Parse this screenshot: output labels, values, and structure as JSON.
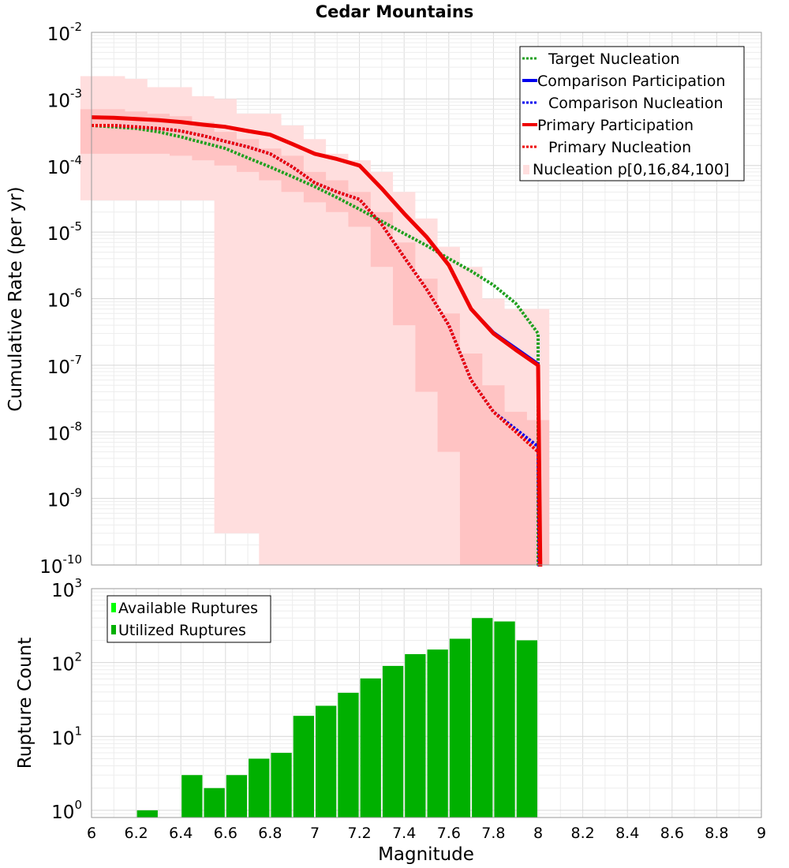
{
  "chart_data": [
    {
      "type": "line",
      "title": "Cedar Mountains",
      "xlabel": "",
      "ylabel": "Cumulative Rate (per yr)",
      "xlim": [
        6,
        9
      ],
      "ylim": [
        1e-10,
        0.01
      ],
      "yscale": "log",
      "y_tick_bases": [
        "10",
        "10",
        "10",
        "10",
        "10",
        "10",
        "10",
        "10",
        "10"
      ],
      "y_tick_exponents": [
        "-10",
        "-9",
        "-8",
        "-7",
        "-6",
        "-5",
        "-4",
        "-3",
        "-2"
      ],
      "grid": true,
      "legend_position": "top-right",
      "legend": [
        "Target Nucleation",
        "Comparison Participation",
        "Comparison Nucleation",
        "Primary Participation",
        "Primary Nucleation",
        "Nucleation p[0,16,84,100]"
      ],
      "colors": {
        "target": "#1fa01f",
        "comparison": "#0000ee",
        "primary": "#ee0000",
        "band_outer": "#ffdede",
        "band_inner": "#ffc3c3"
      },
      "x": [
        6.0,
        6.1,
        6.2,
        6.3,
        6.4,
        6.5,
        6.6,
        6.7,
        6.8,
        6.9,
        7.0,
        7.1,
        7.2,
        7.3,
        7.4,
        7.5,
        7.6,
        7.7,
        7.8,
        7.9,
        8.0
      ],
      "series": [
        {
          "name": "Target Nucleation",
          "style": "dotted",
          "values": [
            0.0004,
            0.00038,
            0.00036,
            0.00032,
            0.00027,
            0.00022,
            0.00018,
            0.00013,
            9.5e-05,
            6.8e-05,
            4.8e-05,
            3.3e-05,
            2.2e-05,
            1.45e-05,
            9.5e-06,
            6.3e-06,
            4e-06,
            2.6e-06,
            1.6e-06,
            8.5e-07,
            3e-07
          ]
        },
        {
          "name": "Comparison Participation",
          "style": "solid",
          "values": [
            0.00053,
            0.00052,
            0.0005,
            0.00048,
            0.00045,
            0.00041,
            0.00038,
            0.00033,
            0.00029,
            0.00021,
            0.00015,
            0.000125,
            0.0001,
            4.5e-05,
            1.9e-05,
            8.5e-06,
            3.2e-06,
            7e-07,
            3.1e-07,
            1.8e-07,
            1.05e-07
          ]
        },
        {
          "name": "Comparison Nucleation",
          "style": "dotted",
          "values": [
            0.0004,
            0.0004,
            0.00038,
            0.00036,
            0.00033,
            0.00028,
            0.00023,
            0.00019,
            0.00015,
            9.5e-05,
            5.5e-05,
            4e-05,
            3.1e-05,
            1.3e-05,
            4.2e-06,
            1.4e-06,
            4e-07,
            6e-08,
            2e-08,
            1.1e-08,
            6e-09
          ]
        },
        {
          "name": "Primary Participation",
          "style": "solid",
          "values": [
            0.00053,
            0.00052,
            0.0005,
            0.00048,
            0.00045,
            0.00041,
            0.00038,
            0.00033,
            0.00029,
            0.00021,
            0.00015,
            0.000125,
            0.0001,
            4.5e-05,
            1.9e-05,
            8.5e-06,
            3.2e-06,
            7e-07,
            3e-07,
            1.7e-07,
            1e-07
          ]
        },
        {
          "name": "Primary Nucleation",
          "style": "dotted",
          "values": [
            0.0004,
            0.0004,
            0.00038,
            0.00036,
            0.00033,
            0.00028,
            0.00023,
            0.00019,
            0.00015,
            9.5e-05,
            5.5e-05,
            4e-05,
            3.1e-05,
            1.3e-05,
            4.2e-06,
            1.4e-06,
            4e-07,
            6e-08,
            2e-08,
            1e-08,
            5e-09
          ]
        }
      ],
      "nucleation_band": {
        "x": [
          6.0,
          6.1,
          6.2,
          6.3,
          6.4,
          6.5,
          6.6,
          6.7,
          6.8,
          6.9,
          7.0,
          7.1,
          7.2,
          7.3,
          7.4,
          7.5,
          7.6,
          7.7,
          7.8,
          7.9,
          8.0
        ],
        "p0": [
          3e-05,
          3e-05,
          3e-05,
          3e-05,
          3e-05,
          3e-05,
          3e-10,
          3e-10,
          1e-11,
          1e-11,
          1e-11,
          1e-11,
          1e-11,
          1e-11,
          1e-11,
          1e-11,
          1e-11,
          1e-11,
          1e-11,
          1e-11,
          1e-11
        ],
        "p16": [
          0.00015,
          0.00015,
          0.00015,
          0.00015,
          0.00014,
          0.00012,
          0.0001,
          8e-05,
          6e-05,
          4e-05,
          2.8e-05,
          2e-05,
          1.2e-05,
          3e-06,
          4e-07,
          4e-08,
          5e-09,
          1e-11,
          1e-11,
          1e-11,
          1e-11
        ],
        "p84": [
          0.0007,
          0.0007,
          0.00065,
          0.0006,
          0.00055,
          0.00045,
          0.00032,
          0.00025,
          0.00018,
          0.00014,
          8e-05,
          6e-05,
          4e-05,
          2e-05,
          7e-06,
          2e-06,
          6e-07,
          1.5e-07,
          5e-08,
          2e-08,
          1.5e-08
        ],
        "p100": [
          0.0022,
          0.0022,
          0.002,
          0.0015,
          0.0015,
          0.0011,
          0.001,
          0.0006,
          0.0006,
          0.0004,
          0.00025,
          0.00015,
          0.00012,
          8e-05,
          4e-05,
          1.6e-05,
          6e-06,
          3e-06,
          1e-06,
          7e-07,
          7e-07
        ]
      }
    },
    {
      "type": "bar",
      "title": "",
      "xlabel": "Magnitude",
      "ylabel": "Rupture Count",
      "xlim": [
        6,
        9
      ],
      "ylim": [
        0.8,
        1000
      ],
      "yscale": "log",
      "x_ticks": [
        "6",
        "6.2",
        "6.4",
        "6.6",
        "6.8",
        "7",
        "7.2",
        "7.4",
        "7.6",
        "7.8",
        "8",
        "8.2",
        "8.4",
        "8.6",
        "8.8",
        "9"
      ],
      "y_tick_bases": [
        "10",
        "10",
        "10",
        "10"
      ],
      "y_tick_exponents": [
        "0",
        "1",
        "2",
        "3"
      ],
      "grid": true,
      "legend_position": "top-left",
      "legend": [
        "Available Ruptures",
        "Utilized Ruptures"
      ],
      "colors": {
        "available": "#00ff00",
        "utilized": "#00b000"
      },
      "bin_width": 0.1,
      "categories": [
        6.25,
        6.45,
        6.55,
        6.65,
        6.75,
        6.85,
        6.95,
        7.05,
        7.15,
        7.25,
        7.35,
        7.45,
        7.55,
        7.65,
        7.75,
        7.85,
        7.95
      ],
      "series": [
        {
          "name": "Available Ruptures",
          "values": [
            1,
            3,
            2,
            3,
            5,
            6,
            19,
            26,
            39,
            61,
            90,
            130,
            150,
            210,
            400,
            360,
            200
          ]
        },
        {
          "name": "Utilized Ruptures",
          "values": [
            1,
            3,
            2,
            3,
            5,
            6,
            19,
            26,
            39,
            61,
            90,
            130,
            150,
            210,
            400,
            360,
            200
          ]
        }
      ]
    }
  ]
}
